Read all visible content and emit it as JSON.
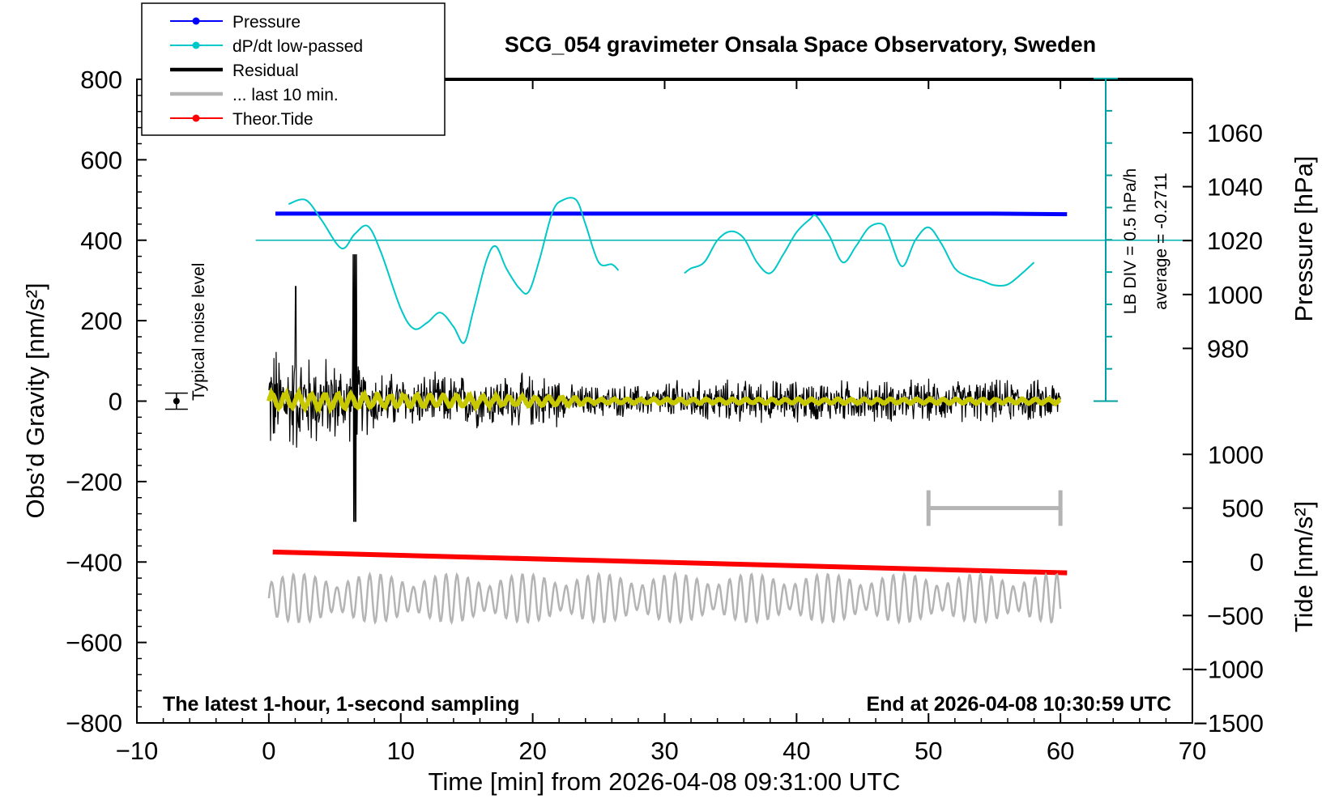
{
  "chart_data": {
    "type": "line",
    "title": "SCG_054 gravimeter Onsala Space Observatory, Sweden",
    "xlabel": "Time [min] from 2026-04-08 09:31:00 UTC",
    "ylabel": "Obs’d Gravity [nm/s²]",
    "ylabel_right_top": "Pressure [hPa]",
    "ylabel_right_bottom": "Tide [nm/s²]",
    "xlim": [
      -10,
      70
    ],
    "ylim": [
      -800,
      800
    ],
    "x_ticks": [
      "−10",
      "0",
      "10",
      "20",
      "30",
      "40",
      "50",
      "60",
      "70"
    ],
    "y_ticks": [
      "−800",
      "−600",
      "−400",
      "−200",
      "0",
      "200",
      "400",
      "600",
      "800"
    ],
    "pressure_ticks": [
      "1060",
      "1040",
      "1020",
      "1000",
      "980"
    ],
    "pressure_tick_values": [
      1060,
      1040,
      1020,
      1000,
      980
    ],
    "tide_ticks": [
      "1000",
      "500",
      "0",
      "−500",
      "−1000",
      "−1500"
    ],
    "tide_tick_values": [
      1000,
      500,
      0,
      -500,
      -1000,
      -1500
    ],
    "legend": {
      "position": "top-left",
      "entries": [
        {
          "label": "Pressure",
          "color": "#0000ff"
        },
        {
          "label": "dP/dt low-passed",
          "color": "#00c8c8"
        },
        {
          "label": "Residual",
          "color": "#000000"
        },
        {
          "label": "... last 10 min.",
          "color": "#b4b4b4"
        },
        {
          "label": "Theor.Tide",
          "color": "#ff0000"
        }
      ]
    },
    "annotations": {
      "bottom_left": "The latest 1-hour, 1-second sampling",
      "bottom_right": "End at 2026-04-08 10:30:59 UTC",
      "noise_label": "Typical noise level",
      "lb_div": "LB DIV = 0.5 hPa/h",
      "average": "average = -0.2711"
    },
    "series": [
      {
        "name": "Pressure",
        "color": "#0000ff",
        "unit": "hPa",
        "x": [
          0.5,
          55,
          60.5
        ],
        "values": [
          1030.0,
          1030.0,
          1029.8
        ]
      },
      {
        "name": "dP/dt low-passed",
        "color": "#00c8c8",
        "unit": "gravity-scaled",
        "segments": [
          {
            "x": [
              1.5,
              2.8,
              4.0,
              5.5,
              6.5,
              7.5,
              8.5,
              10.0,
              11.0,
              12.0,
              13.0,
              14.0,
              14.8,
              15.5,
              16.5,
              17.2,
              18.0,
              19.0,
              19.7,
              20.5,
              21.5,
              22.3,
              23.3,
              24.0,
              25.0,
              26.0,
              26.5
            ],
            "values": [
              490,
              500,
              450,
              380,
              415,
              435,
              370,
              230,
              180,
              195,
              220,
              185,
              145,
              225,
              350,
              385,
              330,
              280,
              272,
              350,
              470,
              500,
              500,
              440,
              345,
              340,
              325
            ]
          },
          {
            "x": [
              31.5,
              32.0,
              33.0,
              34.0,
              35.0,
              36.0,
              37.0,
              38.0,
              39.0,
              40.0,
              41.0,
              41.5,
              42.5,
              43.5,
              44.5,
              45.5,
              46.5,
              47.0,
              48.0,
              49.0,
              50.0,
              51.0,
              52.0,
              53.0,
              54.0,
              55.0,
              56.0,
              57.0,
              58.0
            ],
            "values": [
              318,
              330,
              345,
              400,
              422,
              405,
              345,
              318,
              365,
              420,
              452,
              460,
              410,
              345,
              385,
              432,
              440,
              410,
              335,
              400,
              432,
              390,
              330,
              310,
              300,
              288,
              290,
              315,
              345
            ]
          }
        ]
      },
      {
        "name": "Residual",
        "color": "#000000",
        "unit": "nm/s²",
        "x_range": [
          0,
          60
        ],
        "min": -300,
        "max": 365
      },
      {
        "name": "Typical noise level",
        "color": "#000000",
        "x": -7,
        "value": 0,
        "error": 20
      },
      {
        "name": "... last 10 min.",
        "color": "#b4b4b4",
        "x_range": [
          0,
          60
        ],
        "offset": -490,
        "amplitude": 60
      },
      {
        "name": "Theor.Tide",
        "color": "#ff0000",
        "unit": "nm/s²",
        "x": [
          0.3,
          60.5
        ],
        "values": [
          -375,
          -427
        ]
      }
    ],
    "scale_bar": {
      "x": [
        50,
        60
      ],
      "value": 500
    }
  }
}
